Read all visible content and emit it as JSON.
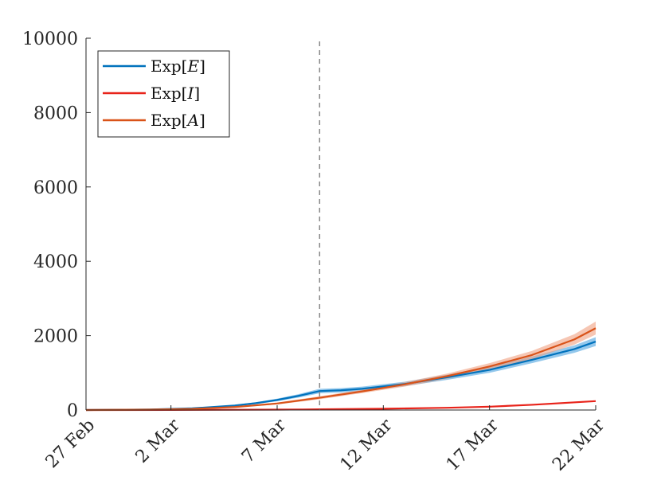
{
  "chart_data": {
    "type": "line",
    "x_axis": {
      "ticks": [
        "2020-02-27",
        "2020-03-02",
        "2020-03-07",
        "2020-03-12",
        "2020-03-17",
        "2020-03-22"
      ],
      "tick_labels": [
        "27 Feb",
        "2 Mar",
        "7 Mar",
        "12 Mar",
        "17 Mar",
        "22 Mar"
      ],
      "range": [
        "2020-02-27",
        "2020-03-22"
      ],
      "tick_label_rotation": "45 degrees"
    },
    "y_axis": {
      "ticks": [
        0,
        2000,
        4000,
        6000,
        8000,
        10000
      ],
      "tick_labels": [
        "0",
        "2000",
        "4000",
        "6000",
        "8000",
        "10000"
      ],
      "range": [
        0,
        10000
      ]
    },
    "grid": false,
    "legend": {
      "placement": "top-left",
      "entries": [
        {
          "base": "Exp",
          "var": "E",
          "color": "#0072BD"
        },
        {
          "base": "Exp",
          "var": "I",
          "color": "#E8231A"
        },
        {
          "base": "Exp",
          "var": "A",
          "color": "#D95319"
        }
      ]
    },
    "vline": {
      "x": "2020-03-09",
      "style": "dashed",
      "color": "#888888"
    },
    "series": [
      {
        "name": "Exp[E]",
        "color": "#0072BD",
        "band_color": "#4DA3E0",
        "x": [
          "2020-02-27",
          "2020-03-01",
          "2020-03-03",
          "2020-03-05",
          "2020-03-06",
          "2020-03-07",
          "2020-03-08",
          "2020-03-09",
          "2020-03-10",
          "2020-03-11",
          "2020-03-13",
          "2020-03-15",
          "2020-03-17",
          "2020-03-19",
          "2020-03-21",
          "2020-03-22"
        ],
        "y": [
          0,
          15,
          45,
          120,
          185,
          270,
          380,
          510,
          530,
          570,
          700,
          880,
          1080,
          1350,
          1640,
          1840
        ],
        "lower": [
          0,
          12,
          38,
          100,
          160,
          235,
          335,
          450,
          470,
          510,
          640,
          810,
          1000,
          1260,
          1540,
          1720
        ],
        "upper": [
          0,
          18,
          52,
          140,
          210,
          305,
          425,
          570,
          590,
          630,
          760,
          950,
          1160,
          1440,
          1740,
          1960
        ]
      },
      {
        "name": "Exp[I]",
        "color": "#E8231A",
        "x": [
          "2020-02-27",
          "2020-03-02",
          "2020-03-07",
          "2020-03-09",
          "2020-03-12",
          "2020-03-15",
          "2020-03-17",
          "2020-03-19",
          "2020-03-22"
        ],
        "y": [
          0,
          2,
          10,
          18,
          35,
          60,
          90,
          140,
          240
        ]
      },
      {
        "name": "Exp[A]",
        "color": "#D95319",
        "band_color": "#F0A080",
        "x": [
          "2020-02-27",
          "2020-03-01",
          "2020-03-03",
          "2020-03-05",
          "2020-03-07",
          "2020-03-09",
          "2020-03-11",
          "2020-03-13",
          "2020-03-15",
          "2020-03-17",
          "2020-03-19",
          "2020-03-21",
          "2020-03-22"
        ],
        "y": [
          0,
          10,
          30,
          80,
          175,
          330,
          500,
          690,
          910,
          1170,
          1480,
          1900,
          2200
        ],
        "lower": [
          0,
          8,
          24,
          66,
          150,
          290,
          455,
          630,
          840,
          1080,
          1370,
          1760,
          2030
        ],
        "upper": [
          0,
          12,
          36,
          95,
          200,
          370,
          545,
          750,
          980,
          1260,
          1590,
          2040,
          2380
        ]
      }
    ]
  }
}
